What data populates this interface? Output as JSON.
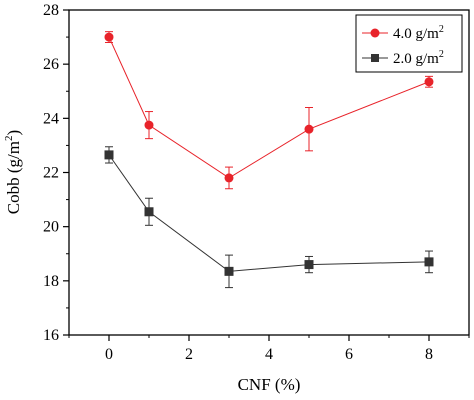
{
  "chart_data": {
    "type": "line",
    "title": "",
    "xlabel": "CNF (%)",
    "ylabel_main": "Cobb (g/m",
    "ylabel_sup": "2",
    "ylabel_end": ")",
    "xlim": [
      -1,
      9
    ],
    "ylim": [
      16,
      28
    ],
    "xticks": [
      0,
      2,
      4,
      6,
      8
    ],
    "yticks": [
      16,
      18,
      20,
      22,
      24,
      26,
      28
    ],
    "grid": false,
    "legend_position": "top-right",
    "series": [
      {
        "name": "4.0 g/m",
        "name_sup": "2",
        "color": "#e8232a",
        "marker": "circle",
        "x": [
          0,
          1,
          3,
          5,
          8
        ],
        "y": [
          27.0,
          23.75,
          21.8,
          23.6,
          25.35
        ],
        "err": [
          0.2,
          0.5,
          0.4,
          0.8,
          0.2
        ]
      },
      {
        "name": "2.0 g/m",
        "name_sup": "2",
        "color": "#333333",
        "marker": "square",
        "x": [
          0,
          1,
          3,
          5,
          8
        ],
        "y": [
          22.65,
          20.55,
          18.35,
          18.6,
          18.7
        ],
        "err": [
          0.3,
          0.5,
          0.6,
          0.3,
          0.4
        ]
      }
    ]
  }
}
